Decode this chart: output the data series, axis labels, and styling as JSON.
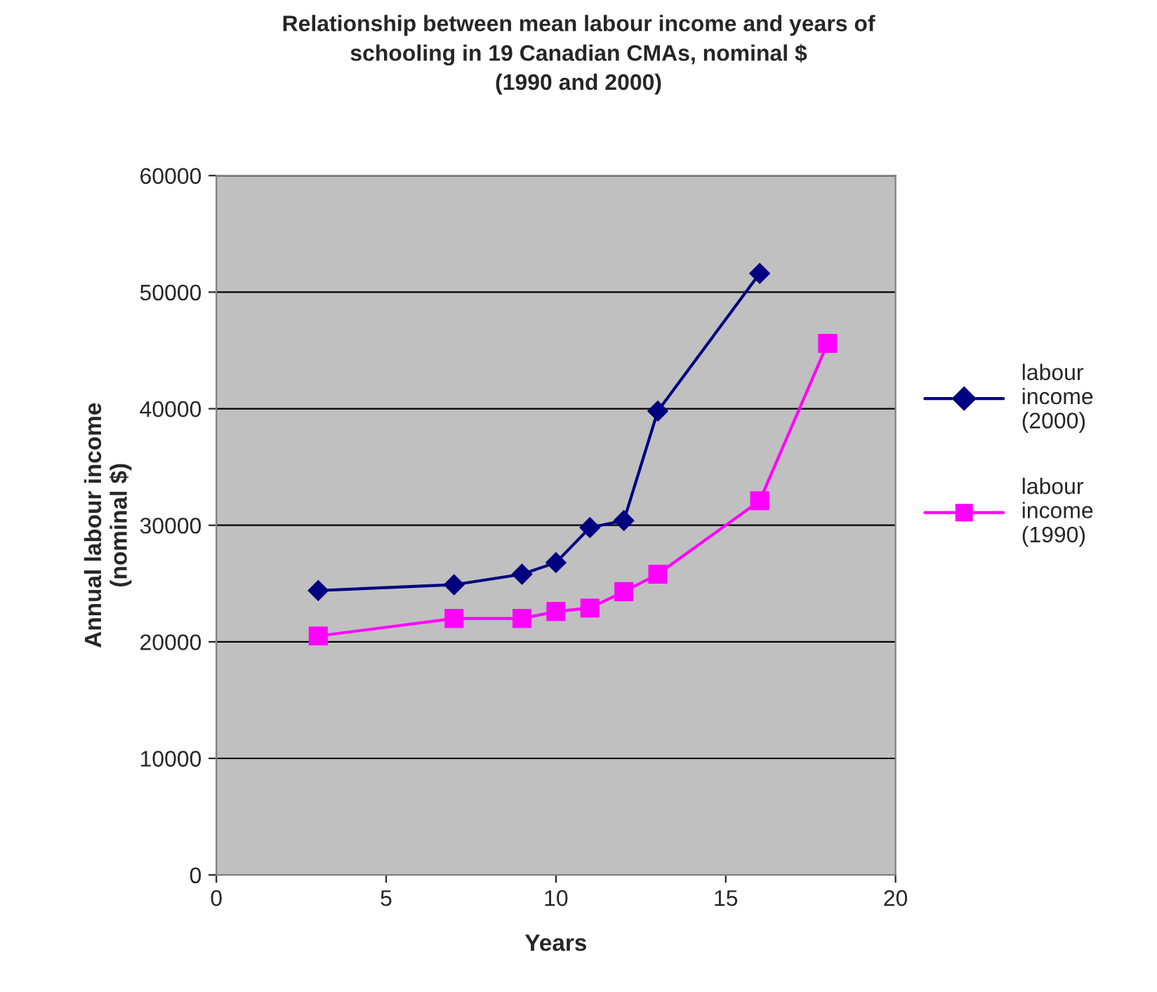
{
  "chart_data": {
    "type": "line",
    "title": "Relationship between mean labour income and years of\nschooling in 19 Canadian CMAs, nominal $\n(1990 and 2000)",
    "xlabel": "Years",
    "ylabel": "Annual labour income\n(nominal $)",
    "series": [
      {
        "name": "labour income (2000)",
        "color": "#000080",
        "marker": "diamond",
        "x": [
          3,
          7,
          9,
          10,
          11,
          12,
          13,
          16
        ],
        "values": [
          24400,
          24900,
          25800,
          26800,
          29800,
          30400,
          39800,
          51600
        ]
      },
      {
        "name": "labour income (1990)",
        "color": "#ff00ff",
        "marker": "square",
        "x": [
          3,
          7,
          9,
          10,
          11,
          12,
          13,
          16,
          18
        ],
        "values": [
          20500,
          22000,
          22000,
          22600,
          22900,
          24300,
          25800,
          32100,
          45600
        ]
      }
    ],
    "xlim": [
      0,
      20
    ],
    "xticks": [
      0,
      5,
      10,
      15,
      20
    ],
    "ylim": [
      0,
      60000
    ],
    "yticks": [
      0,
      10000,
      20000,
      30000,
      40000,
      50000,
      60000
    ],
    "grid": "y",
    "legend": "right"
  }
}
